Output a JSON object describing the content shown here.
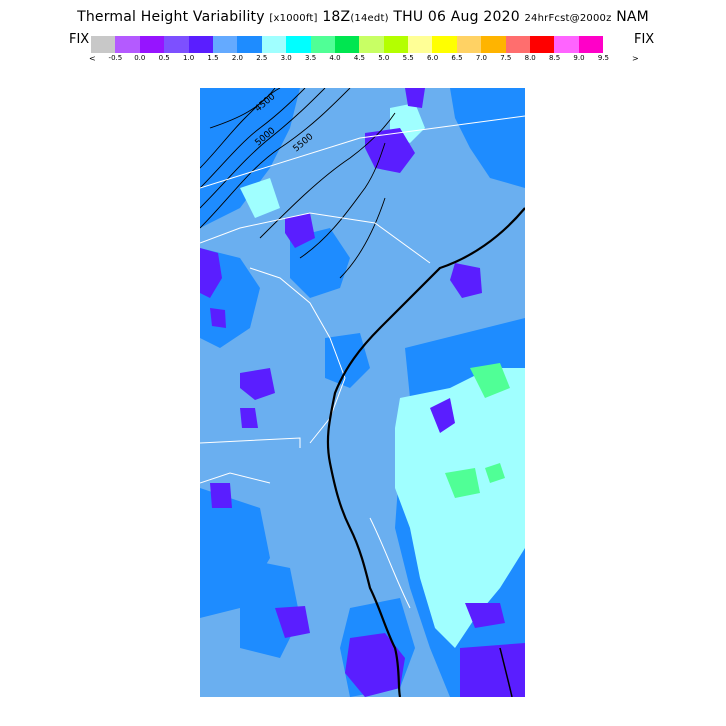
{
  "header": {
    "title_main": "Thermal Height Variability",
    "title_units": "[x1000ft]",
    "title_valid": "18Z",
    "title_local": "(14edt)",
    "title_date": "THU 06 Aug 2020",
    "title_fcst": "24hrFcst@2000z",
    "title_model": "NAM"
  },
  "colorbar": {
    "fix_left": "FIX",
    "fix_right": "FIX",
    "arrow_left": "<",
    "arrow_right": ">",
    "ticks": [
      "-0.5",
      "0.0",
      "0.5",
      "1.0",
      "1.5",
      "2.0",
      "2.5",
      "3.0",
      "3.5",
      "4.0",
      "4.5",
      "5.0",
      "5.5",
      "6.0",
      "6.5",
      "7.0",
      "7.5",
      "8.0",
      "8.5",
      "9.0",
      "9.5"
    ],
    "colors": [
      "#c8c8c8",
      "#b45aff",
      "#9614ff",
      "#7d50ff",
      "#5a1eff",
      "#64aaff",
      "#1e8cff",
      "#a0ffff",
      "#00ffff",
      "#50ff96",
      "#00e650",
      "#c8ff64",
      "#b4ff00",
      "#ffff96",
      "#ffff00",
      "#ffd264",
      "#ffb400",
      "#ff6e6e",
      "#ff0000",
      "#ff64ff",
      "#ff00c8"
    ]
  },
  "map": {
    "contour_labels": [
      "4500",
      "5000",
      "5500"
    ],
    "background_color": "#6aaff0",
    "low_color": "#5a1eff",
    "mid_color": "#1e8cff",
    "high_color": "#a0ffff",
    "peak_color": "#50ff96"
  }
}
